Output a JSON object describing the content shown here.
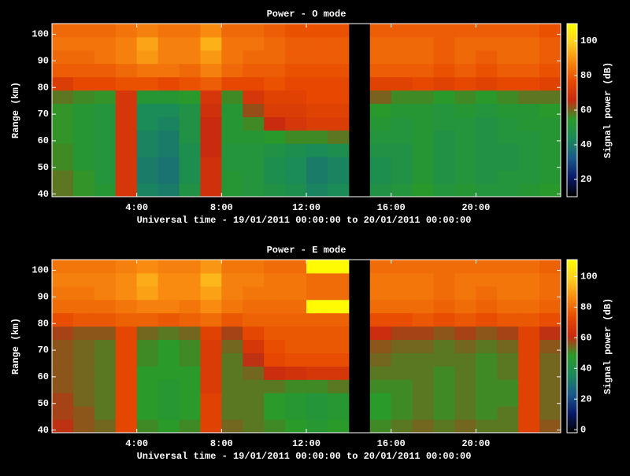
{
  "chart_data": [
    {
      "type": "heatmap",
      "title": "Power - O mode",
      "xlabel": "Universal time - 19/01/2011 00:00:00 to 20/01/2011 00:00:00",
      "ylabel": "Range (km)",
      "colorbar_label": "Signal power (dB)",
      "xlim": [
        0,
        24
      ],
      "ylim": [
        39,
        104
      ],
      "xticks": [
        {
          "value": 4,
          "label": "4:00"
        },
        {
          "value": 8,
          "label": "8:00"
        },
        {
          "value": 12,
          "label": "12:00"
        },
        {
          "value": 16,
          "label": "16:00"
        },
        {
          "value": 20,
          "label": "20:00"
        }
      ],
      "yticks": [
        40,
        50,
        60,
        70,
        80,
        90,
        100
      ],
      "clim": [
        10,
        110
      ],
      "cticks": [
        20,
        40,
        60,
        80,
        100
      ],
      "colormap": [
        "#000000",
        "#0a1a6a",
        "#1a5a8a",
        "#1a8a5a",
        "#2a9a2a",
        "#c82a10",
        "#e84a00",
        "#f88a10",
        "#ffd020",
        "#ffff00"
      ],
      "xbins": [
        0,
        1,
        2,
        3,
        4,
        5,
        6,
        7,
        8,
        9,
        10,
        11,
        12,
        13,
        14,
        15,
        16,
        17,
        18,
        19,
        20,
        21,
        22,
        23,
        24
      ],
      "ybins": [
        39,
        44,
        49,
        54,
        59,
        64,
        69,
        74,
        79,
        84,
        89,
        94,
        99,
        104
      ],
      "z": [
        [
          58,
          58,
          56,
          56,
          55,
          55,
          55,
          58,
          72,
          80,
          82,
          84,
          82
        ],
        [
          55,
          55,
          52,
          52,
          52,
          52,
          52,
          56,
          76,
          80,
          82,
          84,
          82
        ],
        [
          52,
          50,
          50,
          50,
          50,
          50,
          50,
          55,
          76,
          80,
          84,
          84,
          82
        ],
        [
          70,
          70,
          70,
          70,
          70,
          70,
          70,
          70,
          78,
          82,
          86,
          86,
          84
        ],
        [
          42,
          40,
          40,
          42,
          42,
          44,
          44,
          52,
          78,
          84,
          90,
          92,
          86
        ],
        [
          40,
          38,
          38,
          40,
          40,
          42,
          44,
          52,
          76,
          84,
          86,
          86,
          84
        ],
        [
          48,
          46,
          46,
          46,
          48,
          48,
          48,
          54,
          78,
          82,
          86,
          86,
          84
        ],
        [
          68,
          68,
          68,
          66,
          66,
          66,
          68,
          70,
          80,
          86,
          90,
          94,
          88
        ],
        [
          52,
          52,
          50,
          50,
          52,
          52,
          52,
          56,
          76,
          82,
          84,
          84,
          82
        ],
        [
          50,
          50,
          50,
          50,
          52,
          56,
          62,
          70,
          76,
          80,
          82,
          84,
          82
        ],
        [
          48,
          46,
          46,
          48,
          54,
          66,
          72,
          74,
          78,
          80,
          82,
          82,
          80
        ],
        [
          46,
          44,
          44,
          46,
          56,
          70,
          72,
          74,
          76,
          78,
          80,
          80,
          78
        ],
        [
          42,
          40,
          40,
          44,
          56,
          72,
          74,
          76,
          76,
          78,
          80,
          80,
          78
        ],
        [
          44,
          42,
          42,
          46,
          58,
          72,
          74,
          76,
          76,
          78,
          80,
          80,
          78
        ],
        [
          null,
          null,
          null,
          null,
          null,
          null,
          null,
          null,
          null,
          null,
          null,
          null,
          null
        ],
        [
          48,
          46,
          46,
          48,
          50,
          52,
          54,
          60,
          74,
          80,
          82,
          82,
          80
        ],
        [
          50,
          48,
          48,
          48,
          50,
          50,
          52,
          56,
          74,
          80,
          82,
          82,
          80
        ],
        [
          54,
          52,
          52,
          52,
          52,
          52,
          52,
          56,
          76,
          80,
          82,
          82,
          80
        ],
        [
          50,
          48,
          48,
          48,
          48,
          50,
          50,
          54,
          74,
          78,
          80,
          80,
          80
        ],
        [
          52,
          50,
          50,
          50,
          50,
          50,
          52,
          56,
          76,
          80,
          82,
          82,
          80
        ],
        [
          50,
          48,
          48,
          48,
          48,
          48,
          50,
          54,
          74,
          78,
          80,
          82,
          80
        ],
        [
          50,
          50,
          48,
          48,
          50,
          50,
          52,
          56,
          76,
          80,
          82,
          82,
          80
        ],
        [
          52,
          50,
          50,
          50,
          50,
          52,
          52,
          58,
          76,
          80,
          82,
          82,
          80
        ],
        [
          54,
          52,
          52,
          52,
          52,
          52,
          54,
          58,
          74,
          78,
          80,
          80,
          78
        ]
      ]
    },
    {
      "type": "heatmap",
      "title": "Power - E mode",
      "xlabel": "Universal time - 19/01/2011 00:00:00 to 20/01/2011 00:00:00",
      "ylabel": "Range (km)",
      "colorbar_label": "Signal power (dB)",
      "xlim": [
        0,
        24
      ],
      "ylim": [
        39,
        104
      ],
      "xticks": [
        {
          "value": 4,
          "label": "4:00"
        },
        {
          "value": 8,
          "label": "8:00"
        },
        {
          "value": 12,
          "label": "12:00"
        },
        {
          "value": 16,
          "label": "16:00"
        },
        {
          "value": 20,
          "label": "20:00"
        }
      ],
      "yticks": [
        40,
        50,
        60,
        70,
        80,
        90,
        100
      ],
      "clim": [
        -2,
        111
      ],
      "cticks": [
        0,
        20,
        40,
        60,
        80,
        100
      ],
      "colormap": [
        "#000000",
        "#0a1a6a",
        "#1a5a8a",
        "#1a8a5a",
        "#2a9a2a",
        "#c82a10",
        "#e84a00",
        "#f88a10",
        "#ffd020",
        "#ffff00"
      ],
      "xbins": [
        0,
        1,
        2,
        3,
        4,
        5,
        6,
        7,
        8,
        9,
        10,
        11,
        12,
        13,
        14,
        15,
        16,
        17,
        18,
        19,
        20,
        21,
        22,
        23,
        24
      ],
      "ybins": [
        39,
        44,
        49,
        54,
        59,
        64,
        69,
        74,
        79,
        84,
        89,
        94,
        99,
        104
      ],
      "z": [
        [
          60,
          58,
          58,
          56,
          56,
          56,
          56,
          58,
          74,
          80,
          82,
          84,
          82
        ],
        [
          56,
          56,
          54,
          54,
          54,
          54,
          54,
          56,
          76,
          80,
          82,
          84,
          82
        ],
        [
          54,
          52,
          52,
          52,
          52,
          52,
          52,
          56,
          76,
          80,
          84,
          84,
          82
        ],
        [
          72,
          72,
          72,
          72,
          72,
          72,
          72,
          72,
          78,
          82,
          86,
          86,
          84
        ],
        [
          50,
          48,
          48,
          48,
          48,
          50,
          50,
          54,
          78,
          84,
          90,
          92,
          86
        ],
        [
          48,
          46,
          46,
          46,
          48,
          48,
          48,
          52,
          76,
          84,
          86,
          86,
          84
        ],
        [
          50,
          48,
          48,
          48,
          48,
          50,
          50,
          54,
          78,
          82,
          86,
          86,
          84
        ],
        [
          70,
          70,
          70,
          68,
          68,
          68,
          68,
          70,
          80,
          86,
          90,
          94,
          88
        ],
        [
          54,
          52,
          52,
          52,
          52,
          52,
          54,
          58,
          76,
          82,
          84,
          84,
          82
        ],
        [
          52,
          52,
          52,
          52,
          54,
          60,
          66,
          72,
          78,
          80,
          82,
          84,
          82
        ],
        [
          50,
          48,
          48,
          52,
          62,
          72,
          74,
          76,
          78,
          80,
          82,
          82,
          80
        ],
        [
          48,
          46,
          46,
          50,
          64,
          74,
          76,
          76,
          78,
          80,
          82,
          82,
          80
        ],
        [
          46,
          44,
          44,
          50,
          66,
          74,
          76,
          76,
          78,
          110,
          80,
          80,
          110
        ],
        [
          48,
          46,
          46,
          52,
          66,
          74,
          76,
          76,
          78,
          110,
          80,
          80,
          110
        ],
        [
          null,
          null,
          null,
          null,
          null,
          null,
          null,
          null,
          null,
          null,
          null,
          null,
          null
        ],
        [
          50,
          48,
          48,
          50,
          52,
          54,
          56,
          62,
          74,
          80,
          82,
          82,
          80
        ],
        [
          52,
          50,
          50,
          50,
          52,
          52,
          54,
          58,
          74,
          80,
          82,
          82,
          80
        ],
        [
          54,
          52,
          52,
          52,
          52,
          52,
          54,
          58,
          76,
          80,
          82,
          82,
          80
        ],
        [
          52,
          50,
          50,
          50,
          50,
          52,
          52,
          56,
          74,
          78,
          80,
          80,
          80
        ],
        [
          54,
          52,
          52,
          52,
          52,
          52,
          54,
          58,
          76,
          80,
          82,
          82,
          80
        ],
        [
          52,
          50,
          50,
          50,
          50,
          50,
          52,
          56,
          74,
          78,
          80,
          82,
          80
        ],
        [
          52,
          52,
          50,
          50,
          52,
          52,
          54,
          58,
          76,
          80,
          82,
          82,
          80
        ],
        [
          70,
          70,
          70,
          70,
          70,
          70,
          70,
          70,
          76,
          80,
          82,
          82,
          80
        ],
        [
          56,
          54,
          54,
          54,
          54,
          54,
          56,
          60,
          74,
          78,
          80,
          80,
          78
        ]
      ]
    }
  ]
}
